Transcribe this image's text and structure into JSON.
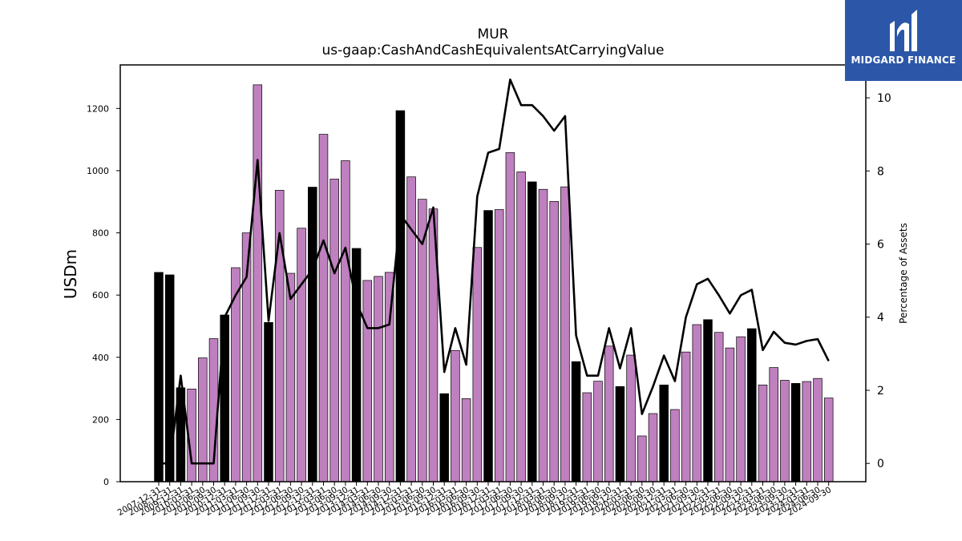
{
  "brand": {
    "name": "MIDGARD FINANCE"
  },
  "chart_data": {
    "type": "bar",
    "title": "MUR",
    "subtitle": "us-gaap:CashAndCashEquivalentsAtCarryingValue",
    "ylabel": "USDm",
    "y2label": "Percentage of Assets",
    "ylim": [
      0,
      1340
    ],
    "y2lim": [
      -0.5,
      10.9
    ],
    "yticks": [
      0,
      200,
      400,
      600,
      800,
      1000,
      1200
    ],
    "y2ticks": [
      0,
      2,
      4,
      6,
      8,
      10
    ],
    "colors": {
      "annual_bar": "#000000",
      "quarter_bar": "#bf80bf",
      "line": "#000000"
    },
    "categories": [
      "2007-12-31",
      "2008-12-31",
      "2009-12-31",
      "2010-03-31",
      "2010-06-30",
      "2010-09-30",
      "2010-12-31",
      "2011-03-31",
      "2011-06-30",
      "2011-09-30",
      "2011-12-31",
      "2012-03-31",
      "2012-06-30",
      "2012-09-30",
      "2012-12-31",
      "2013-03-31",
      "2013-06-30",
      "2013-09-30",
      "2013-12-31",
      "2014-03-31",
      "2014-06-30",
      "2014-09-30",
      "2014-12-31",
      "2015-03-31",
      "2015-06-30",
      "2015-09-30",
      "2015-12-31",
      "2016-03-31",
      "2016-06-30",
      "2016-09-30",
      "2016-12-31",
      "2017-03-31",
      "2017-06-30",
      "2017-09-30",
      "2017-12-31",
      "2018-03-31",
      "2018-06-30",
      "2018-09-30",
      "2018-12-31",
      "2019-03-31",
      "2019-06-30",
      "2019-09-30",
      "2019-12-31",
      "2020-03-31",
      "2020-06-30",
      "2020-09-30",
      "2020-12-31",
      "2021-03-31",
      "2021-06-30",
      "2021-09-30",
      "2021-12-31",
      "2022-03-31",
      "2022-06-30",
      "2022-09-30",
      "2022-12-31",
      "2023-03-31",
      "2023-06-30",
      "2023-09-30",
      "2023-12-31",
      "2024-03-31",
      "2024-06-30",
      "2024-09-30"
    ],
    "xtick_labels": [
      "2007-12-31",
      "2008-12-31",
      "2009-12-31",
      "2010-03-31",
      "2010-06-30",
      "2010-09-30",
      "2010-12-31",
      "2011-03-31",
      "2011-06-30",
      "2011-09-30",
      "2011-12-31",
      "2012-03-31",
      "2012-06-30",
      "2012-09-30",
      "2012-12-31",
      "2013-03-31",
      "2013-06-30",
      "2013-09-30",
      "2013-12-31",
      "2014-03-31",
      "2014-06-30",
      "2014-09-30",
      "2014-12-31",
      "2015-03-31",
      "2015-06-30",
      "2015-09-30",
      "2015-12-31",
      "2016-03-31",
      "2016-06-30",
      "2016-09-30",
      "2016-12-31",
      "2017-03-31",
      "2017-06-30",
      "2017-09-30",
      "2017-12-31",
      "2018-03-31",
      "2018-06-30",
      "2018-09-30",
      "2018-12-31",
      "2019-03-31",
      "2019-06-30",
      "2019-09-30",
      "2019-12-31",
      "2020-03-31",
      "2020-06-30",
      "2020-09-30",
      "2020-12-31",
      "2021-03-31",
      "2021-06-30",
      "2021-09-30",
      "2021-12-31",
      "2022-03-31",
      "2022-06-30",
      "2022-09-30",
      "2022-12-31",
      "2023-03-31",
      "2023-06-30",
      "2023-09-30",
      "2023-12-31",
      "2024-03-31",
      "2024-06-30",
      "2024-09-30"
    ],
    "annual": [
      true,
      true,
      true,
      false,
      false,
      false,
      true,
      false,
      false,
      false,
      true,
      false,
      false,
      false,
      true,
      false,
      false,
      false,
      true,
      false,
      false,
      false,
      true,
      false,
      false,
      false,
      true,
      false,
      false,
      false,
      true,
      false,
      false,
      false,
      true,
      false,
      false,
      false,
      true,
      false,
      false,
      false,
      true,
      false,
      false,
      false,
      true,
      false,
      false,
      false,
      true,
      false,
      false,
      false,
      true,
      false,
      false,
      false,
      true,
      false,
      false,
      false
    ],
    "series": [
      {
        "values": [
          673,
          665,
          302,
          298,
          398,
          460,
          536,
          688,
          800,
          1276,
          512,
          937,
          670,
          815,
          947,
          1117,
          973,
          1032,
          750,
          647,
          660,
          673,
          1193,
          980,
          908,
          877,
          283,
          422,
          267,
          753,
          872,
          875,
          1058,
          996,
          964,
          940,
          901,
          948,
          386,
          286,
          323,
          436,
          306,
          407,
          147,
          219,
          311,
          232,
          417,
          505,
          521,
          480,
          430,
          466,
          492,
          311,
          367,
          326,
          316,
          322,
          332,
          269
        ]
      },
      {
        "values": [
          0,
          0,
          2.4,
          0,
          0,
          0,
          4.0,
          4.6,
          5.1,
          8.3,
          3.9,
          6.3,
          4.5,
          4.9,
          5.3,
          6.1,
          5.2,
          5.9,
          4.4,
          3.7,
          3.7,
          3.8,
          6.8,
          6.4,
          6.0,
          7.0,
          2.5,
          3.7,
          2.7,
          7.3,
          8.5,
          8.6,
          10.5,
          9.8,
          9.8,
          9.5,
          9.1,
          9.5,
          3.5,
          2.4,
          2.4,
          3.7,
          2.6,
          3.7,
          1.35,
          2.1,
          2.95,
          2.25,
          4.0,
          4.9,
          5.05,
          4.6,
          4.1,
          4.6,
          4.75,
          3.1,
          3.6,
          3.3,
          3.25,
          3.35,
          3.4,
          2.8
        ]
      }
    ]
  }
}
